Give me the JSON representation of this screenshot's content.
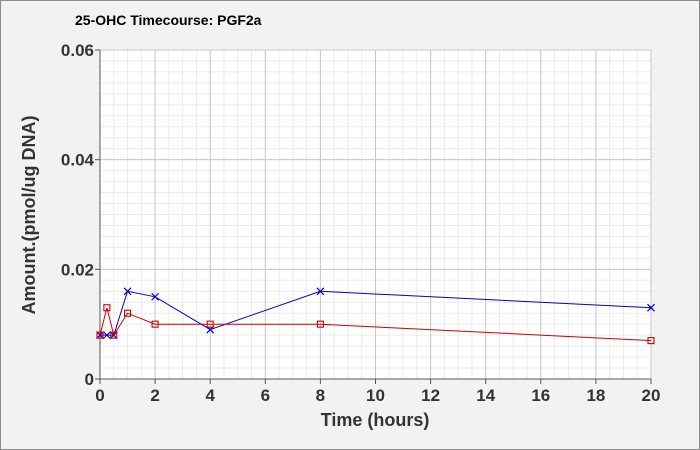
{
  "chart_data": {
    "type": "line",
    "title": "25-OHC Timecourse: PGF2a",
    "xlabel": "Time (hours)",
    "ylabel": "Amount.(pmol/ug DNA)",
    "xlim": [
      0,
      20
    ],
    "ylim": [
      0,
      0.06
    ],
    "x_ticks": [
      "0",
      "2",
      "4",
      "6",
      "8",
      "10",
      "12",
      "14",
      "16",
      "18",
      "20"
    ],
    "y_ticks": [
      "0",
      "0.02",
      "0.04",
      "0.06"
    ],
    "grid": true,
    "legend": "none",
    "series": [
      {
        "color": "#0000cc",
        "marker": "x",
        "x": [
          0,
          0.25,
          0.5,
          1,
          2,
          4,
          8,
          20
        ],
        "values": [
          0.008,
          0.008,
          0.008,
          0.016,
          0.015,
          0.009,
          0.016,
          0.013
        ]
      },
      {
        "color": "#cc0000",
        "marker": "square",
        "x": [
          0,
          0.25,
          0.5,
          1,
          2,
          4,
          8,
          20
        ],
        "values": [
          0.008,
          0.013,
          0.008,
          0.012,
          0.01,
          0.01,
          0.01,
          0.007
        ]
      }
    ]
  }
}
